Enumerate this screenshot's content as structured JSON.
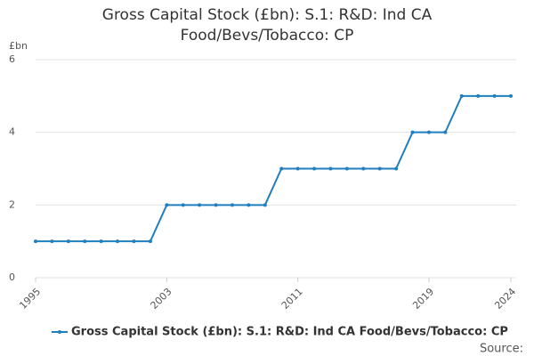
{
  "chart_data": {
    "type": "line",
    "title": "Gross Capital Stock (£bn): S.1: R&D: Ind CA Food/Bevs/Tobacco: CP",
    "y_label": "£bn",
    "source": "Source:",
    "x": [
      1995,
      1996,
      1997,
      1998,
      1999,
      2000,
      2001,
      2002,
      2003,
      2004,
      2005,
      2006,
      2007,
      2008,
      2009,
      2010,
      2011,
      2012,
      2013,
      2014,
      2015,
      2016,
      2017,
      2018,
      2019,
      2020,
      2021,
      2022,
      2023,
      2024
    ],
    "series": [
      {
        "name": "Gross Capital Stock (£bn): S.1: R&D: Ind CA Food/Bevs/Tobacco: CP",
        "color": "#1f7fbf",
        "values": [
          1,
          1,
          1,
          1,
          1,
          1,
          1,
          1,
          2,
          2,
          2,
          2,
          2,
          2,
          2,
          3,
          3,
          3,
          3,
          3,
          3,
          3,
          3,
          4,
          4,
          4,
          5,
          5,
          5,
          5
        ]
      }
    ],
    "xlim": [
      1995,
      2024
    ],
    "xticks": [
      1995,
      2003,
      2011,
      2019,
      2024
    ],
    "ylim": [
      0,
      6
    ],
    "yticks": [
      0,
      2,
      4,
      6
    ],
    "grid": true
  }
}
